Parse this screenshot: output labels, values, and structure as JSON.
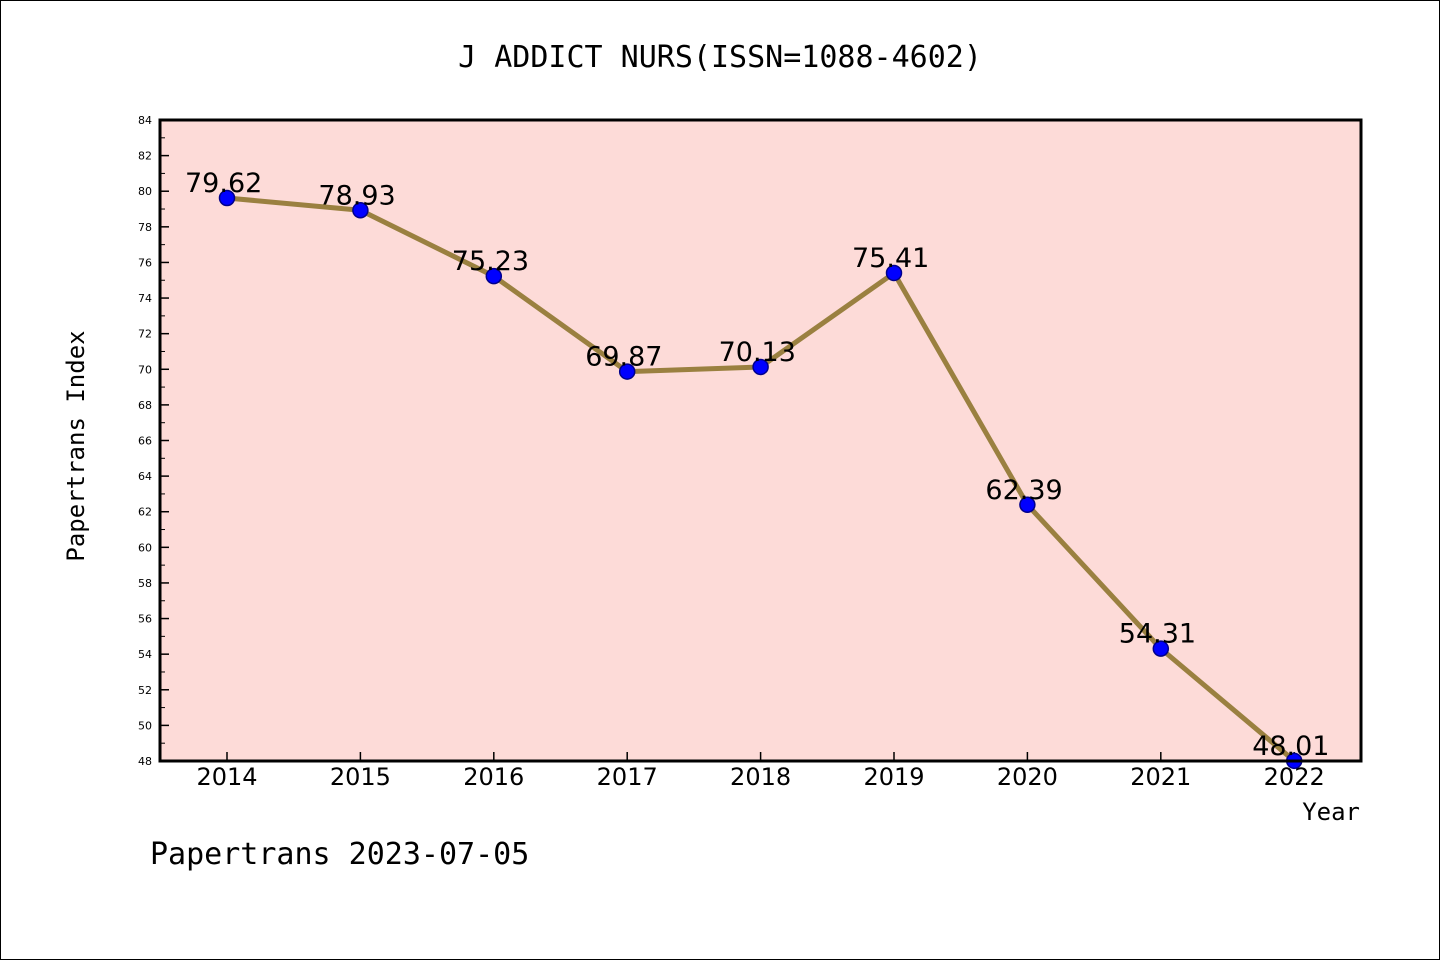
{
  "chart_data": {
    "type": "line",
    "title": "J ADDICT NURS(ISSN=1088-4602)",
    "xlabel": "Year",
    "ylabel": "Papertrans Index",
    "x": [
      "2014",
      "2015",
      "2016",
      "2017",
      "2018",
      "2019",
      "2020",
      "2021",
      "2022"
    ],
    "series": [
      {
        "values": [
          79.62,
          78.93,
          75.23,
          69.87,
          70.13,
          75.41,
          62.39,
          54.31,
          48.01
        ],
        "labels": [
          "79.62",
          "78.93",
          "75.23",
          "69.87",
          "70.13",
          "75.41",
          "62.39",
          "54.31",
          "48.01"
        ]
      }
    ],
    "ylim": [
      48,
      84
    ],
    "yticks": [
      "48",
      "50",
      "52",
      "54",
      "56",
      "58",
      "60",
      "62",
      "64",
      "66",
      "68",
      "70",
      "72",
      "74",
      "76",
      "78",
      "80",
      "82",
      "84"
    ],
    "grid": false,
    "colors": {
      "plot_background": "#fddbd8",
      "line": "#9a8040",
      "marker": "#0000ff",
      "marker_edge": "#00008b"
    }
  },
  "footer": "Papertrans 2023-07-05"
}
